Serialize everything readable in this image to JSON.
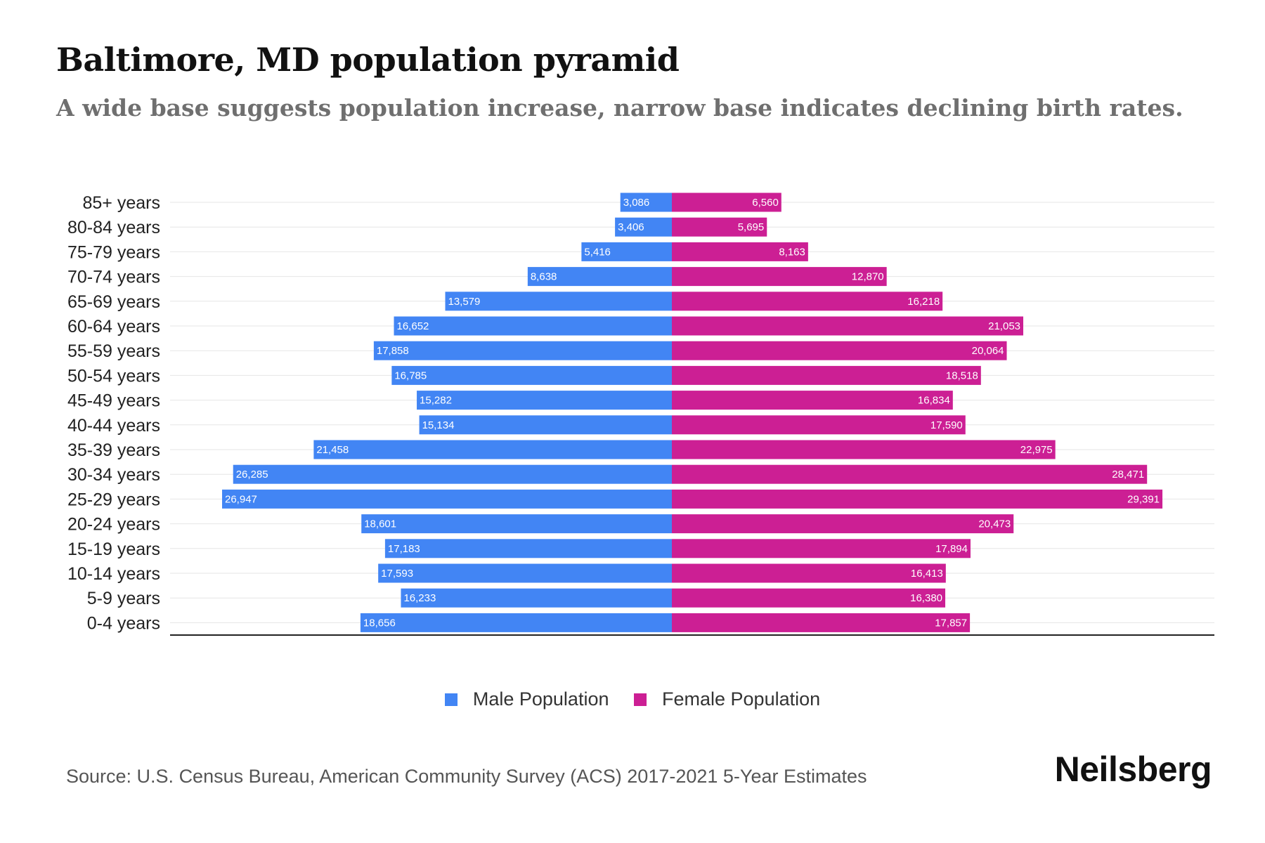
{
  "title": "Baltimore, MD population pyramid",
  "subtitle": "A wide base suggests population increase, narrow base indicates declining birth rates.",
  "legend": {
    "male_label": "Male Population",
    "female_label": "Female Population"
  },
  "source": "Source: U.S. Census Bureau, American Community Survey (ACS) 2017-2021 5-Year Estimates",
  "brand": "Neilsberg",
  "colors": {
    "male": "#4285f4",
    "female": "#cc1f94"
  },
  "chart_data": {
    "type": "bar",
    "orientation": "horizontal",
    "layout": "population-pyramid",
    "categories": [
      "85+ years",
      "80-84 years",
      "75-79 years",
      "70-74 years",
      "65-69 years",
      "60-64 years",
      "55-59 years",
      "50-54 years",
      "45-49 years",
      "40-44 years",
      "35-39 years",
      "30-34 years",
      "25-29 years",
      "20-24 years",
      "15-19 years",
      "10-14 years",
      "5-9 years",
      "0-4 years"
    ],
    "series": [
      {
        "name": "Male Population",
        "side": "left",
        "values": [
          3086,
          3406,
          5416,
          8638,
          13579,
          16652,
          17858,
          16785,
          15282,
          15134,
          21458,
          26285,
          26947,
          18601,
          17183,
          17593,
          16233,
          18656
        ]
      },
      {
        "name": "Female Population",
        "side": "right",
        "values": [
          6560,
          5695,
          8163,
          12870,
          16218,
          21053,
          20064,
          18518,
          16834,
          17590,
          22975,
          28471,
          29391,
          20473,
          17894,
          16413,
          16380,
          17857
        ]
      }
    ],
    "value_labels": {
      "male": [
        "3,086",
        "3,406",
        "5,416",
        "8,638",
        "13,579",
        "16,652",
        "17,858",
        "16,785",
        "15,282",
        "15,134",
        "21,458",
        "26,285",
        "26,947",
        "18,601",
        "17,183",
        "17,593",
        "16,233",
        "18,656"
      ],
      "female": [
        "6,560",
        "5,695",
        "8,163",
        "12,870",
        "16,218",
        "21,053",
        "20,064",
        "18,518",
        "16,834",
        "17,590",
        "22,975",
        "28,471",
        "29,391",
        "20,473",
        "17,894",
        "16,413",
        "16,380",
        "17,857"
      ]
    },
    "xlim": [
      -30000,
      30000
    ],
    "grid": true,
    "legend_position": "bottom"
  }
}
